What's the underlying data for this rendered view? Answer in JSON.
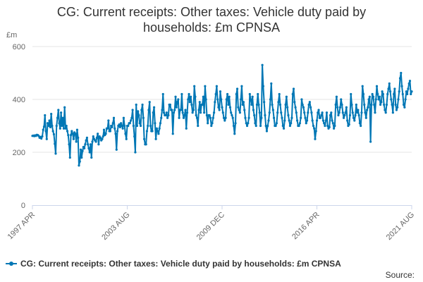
{
  "colors": {
    "series": "#0077b5",
    "grid": "#e6e6e6",
    "axis": "#ccd6eb",
    "text": "#333333"
  },
  "legend": {
    "label": "CG: Current receipts: Other taxes: Vehicle duty paid by households: £m CPNSA"
  },
  "source": {
    "label": "Source:"
  },
  "chart_data": {
    "type": "line",
    "title_lines": [
      "CG: Current receipts: Other taxes: Vehicle duty paid by",
      "households: £m CPNSA"
    ],
    "ylabel": "£m",
    "ylim": [
      0,
      600
    ],
    "yticks": [
      0,
      200,
      400,
      600
    ],
    "xticks": [
      "1997 APR",
      "2003 AUG",
      "2009 DEC",
      "2016 APR",
      "2021 AUG"
    ],
    "legend_position": "bottom-left",
    "series": [
      {
        "name": "CG: Current receipts: Other taxes: Vehicle duty paid by households: £m CPNSA",
        "start": "1997 APR",
        "frequency": "monthly",
        "values": [
          262,
          263,
          261,
          264,
          262,
          266,
          265,
          262,
          255,
          258,
          252,
          260,
          285,
          297,
          340,
          280,
          250,
          310,
          300,
          320,
          295,
          345,
          300,
          280,
          268,
          232,
          195,
          300,
          330,
          360,
          310,
          290,
          350,
          300,
          330,
          290,
          370,
          290,
          300,
          280,
          265,
          230,
          180,
          265,
          280,
          270,
          250,
          275,
          270,
          240,
          285,
          255,
          150,
          165,
          210,
          180,
          205,
          220,
          215,
          230,
          245,
          255,
          230,
          215,
          200,
          230,
          180,
          240,
          260,
          250,
          245,
          240,
          255,
          270,
          230,
          260,
          255,
          245,
          250,
          260,
          285,
          265,
          270,
          290,
          290,
          320,
          280,
          280,
          300,
          295,
          310,
          330,
          290,
          270,
          210,
          280,
          300,
          305,
          295,
          310,
          300,
          290,
          330,
          300,
          270,
          250,
          300,
          300,
          310,
          310,
          320,
          330,
          360,
          300,
          260,
          200,
          380,
          300,
          355,
          340,
          310,
          300,
          360,
          380,
          330,
          250,
          230,
          230,
          280,
          300,
          360,
          390,
          300,
          280,
          280,
          350,
          370,
          310,
          250,
          290,
          280,
          270,
          290,
          310,
          330,
          360,
          420,
          350,
          340,
          340,
          350,
          330,
          340,
          380,
          380,
          360,
          360,
          270,
          350,
          360,
          410,
          370,
          390,
          400,
          330,
          360,
          360,
          420,
          350,
          330,
          340,
          360,
          290,
          350,
          400,
          420,
          390,
          410,
          380,
          350,
          360,
          450,
          410,
          340,
          330,
          300,
          360,
          390,
          350,
          380,
          380,
          410,
          350,
          450,
          400,
          340,
          310,
          340,
          340,
          330,
          300,
          310,
          330,
          350,
          390,
          420,
          450,
          400,
          370,
          360,
          430,
          400,
          370,
          350,
          330,
          320,
          330,
          400,
          420,
          380,
          410,
          370,
          350,
          340,
          330,
          300,
          270,
          310,
          420,
          440,
          370,
          360,
          350,
          400,
          450,
          380,
          390,
          360,
          330,
          310,
          300,
          310,
          330,
          420,
          400,
          380,
          410,
          360,
          340,
          310,
          300,
          380,
          420,
          380,
          350,
          300,
          330,
          530,
          450,
          390,
          340,
          300,
          280,
          300,
          320,
          350,
          400,
          460,
          380,
          360,
          330,
          300,
          300,
          310,
          350,
          390,
          420,
          380,
          350,
          330,
          300,
          290,
          320,
          380,
          410,
          370,
          340,
          320,
          300,
          310,
          330,
          420,
          440,
          390,
          370,
          350,
          320,
          300,
          300,
          310,
          330,
          400,
          380,
          370,
          350,
          330,
          310,
          320,
          350,
          380,
          390,
          370,
          350,
          320,
          300,
          290,
          250,
          280,
          320,
          350,
          360,
          330,
          330,
          340,
          350,
          320,
          310,
          300,
          320,
          350,
          300,
          290,
          295,
          340,
          350,
          320,
          310,
          290,
          300,
          380,
          410,
          370,
          340,
          350,
          370,
          400,
          380,
          350,
          330,
          340,
          350,
          370,
          320,
          300,
          305,
          340,
          420,
          380,
          350,
          330,
          320,
          340,
          380,
          350,
          360,
          340,
          310,
          300,
          350,
          450,
          420,
          380,
          350,
          330,
          360,
          370,
          400,
          410,
          240,
          380,
          420,
          410,
          380,
          350,
          400,
          450,
          420,
          400,
          410,
          380,
          390,
          430,
          420,
          380,
          360,
          350,
          380,
          420,
          440,
          460,
          430,
          400,
          380,
          350,
          420,
          440,
          380,
          360,
          370,
          400,
          430,
          480,
          500,
          450,
          420,
          380,
          370,
          400,
          430,
          420,
          440,
          460,
          470,
          420,
          430
        ]
      }
    ]
  }
}
